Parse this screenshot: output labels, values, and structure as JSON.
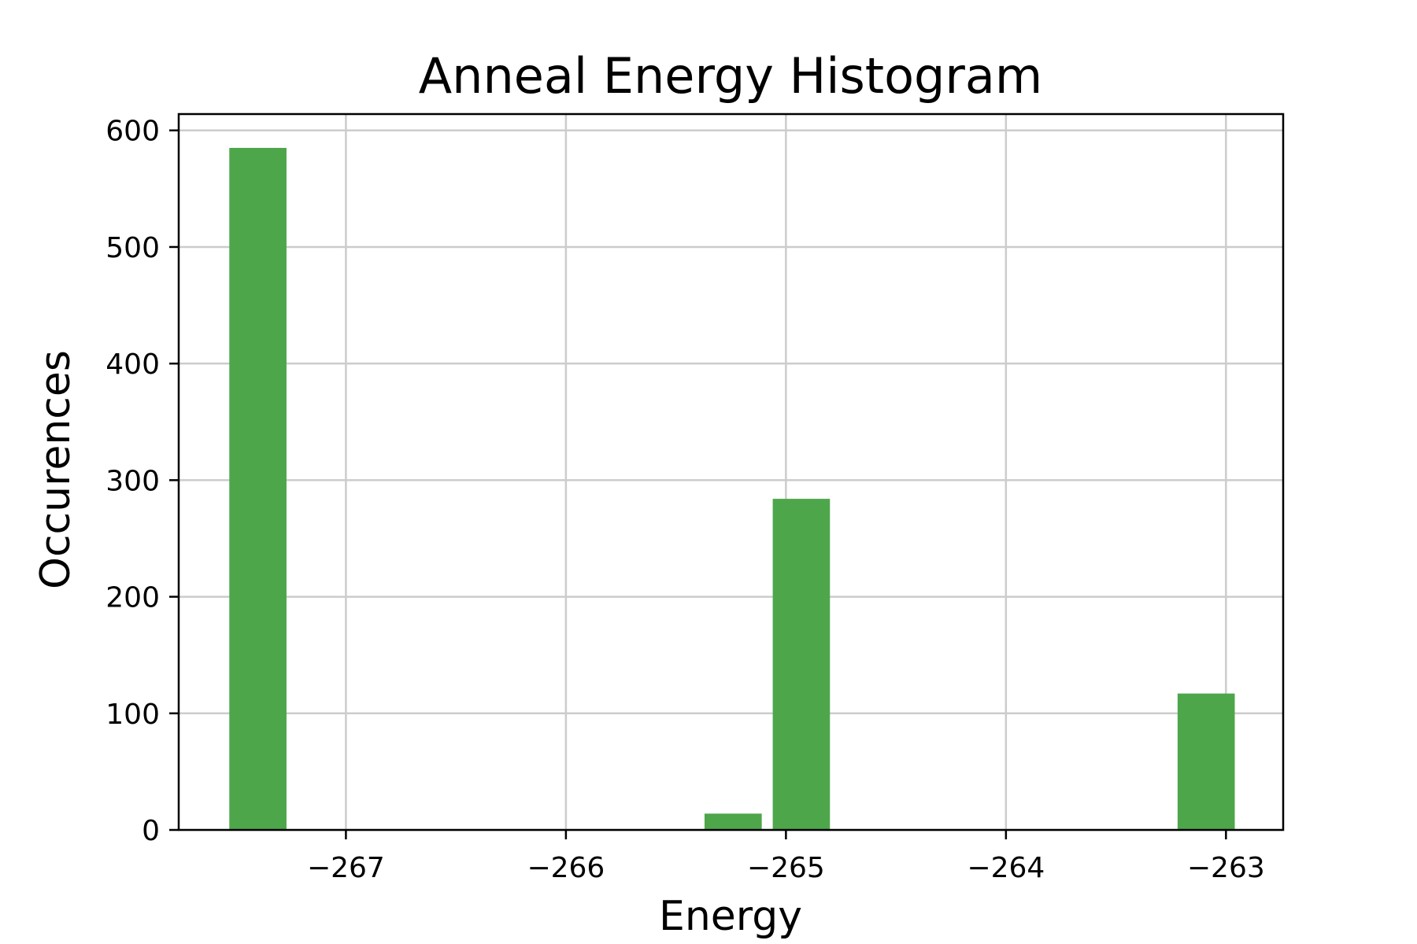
{
  "chart_data": {
    "type": "bar",
    "title": "Anneal Energy Histogram",
    "xlabel": "Energy",
    "ylabel": "Occurences",
    "xlim": [
      -267.76,
      -262.74
    ],
    "ylim": [
      0,
      614
    ],
    "xticks": [
      -267,
      -266,
      -265,
      -264,
      -263
    ],
    "xtick_labels": [
      "−267",
      "−266",
      "−265",
      "−264",
      "−263"
    ],
    "yticks": [
      0,
      100,
      200,
      300,
      400,
      500,
      600
    ],
    "ytick_labels": [
      "0",
      "100",
      "200",
      "300",
      "400",
      "500",
      "600"
    ],
    "grid": true,
    "bars": [
      {
        "x_start": -267.53,
        "x_end": -267.27,
        "value": 585
      },
      {
        "x_start": -265.37,
        "x_end": -265.11,
        "value": 14
      },
      {
        "x_start": -265.06,
        "x_end": -264.8,
        "value": 284
      },
      {
        "x_start": -263.22,
        "x_end": -262.96,
        "value": 117
      }
    ],
    "bar_color": "#4ea64b"
  }
}
